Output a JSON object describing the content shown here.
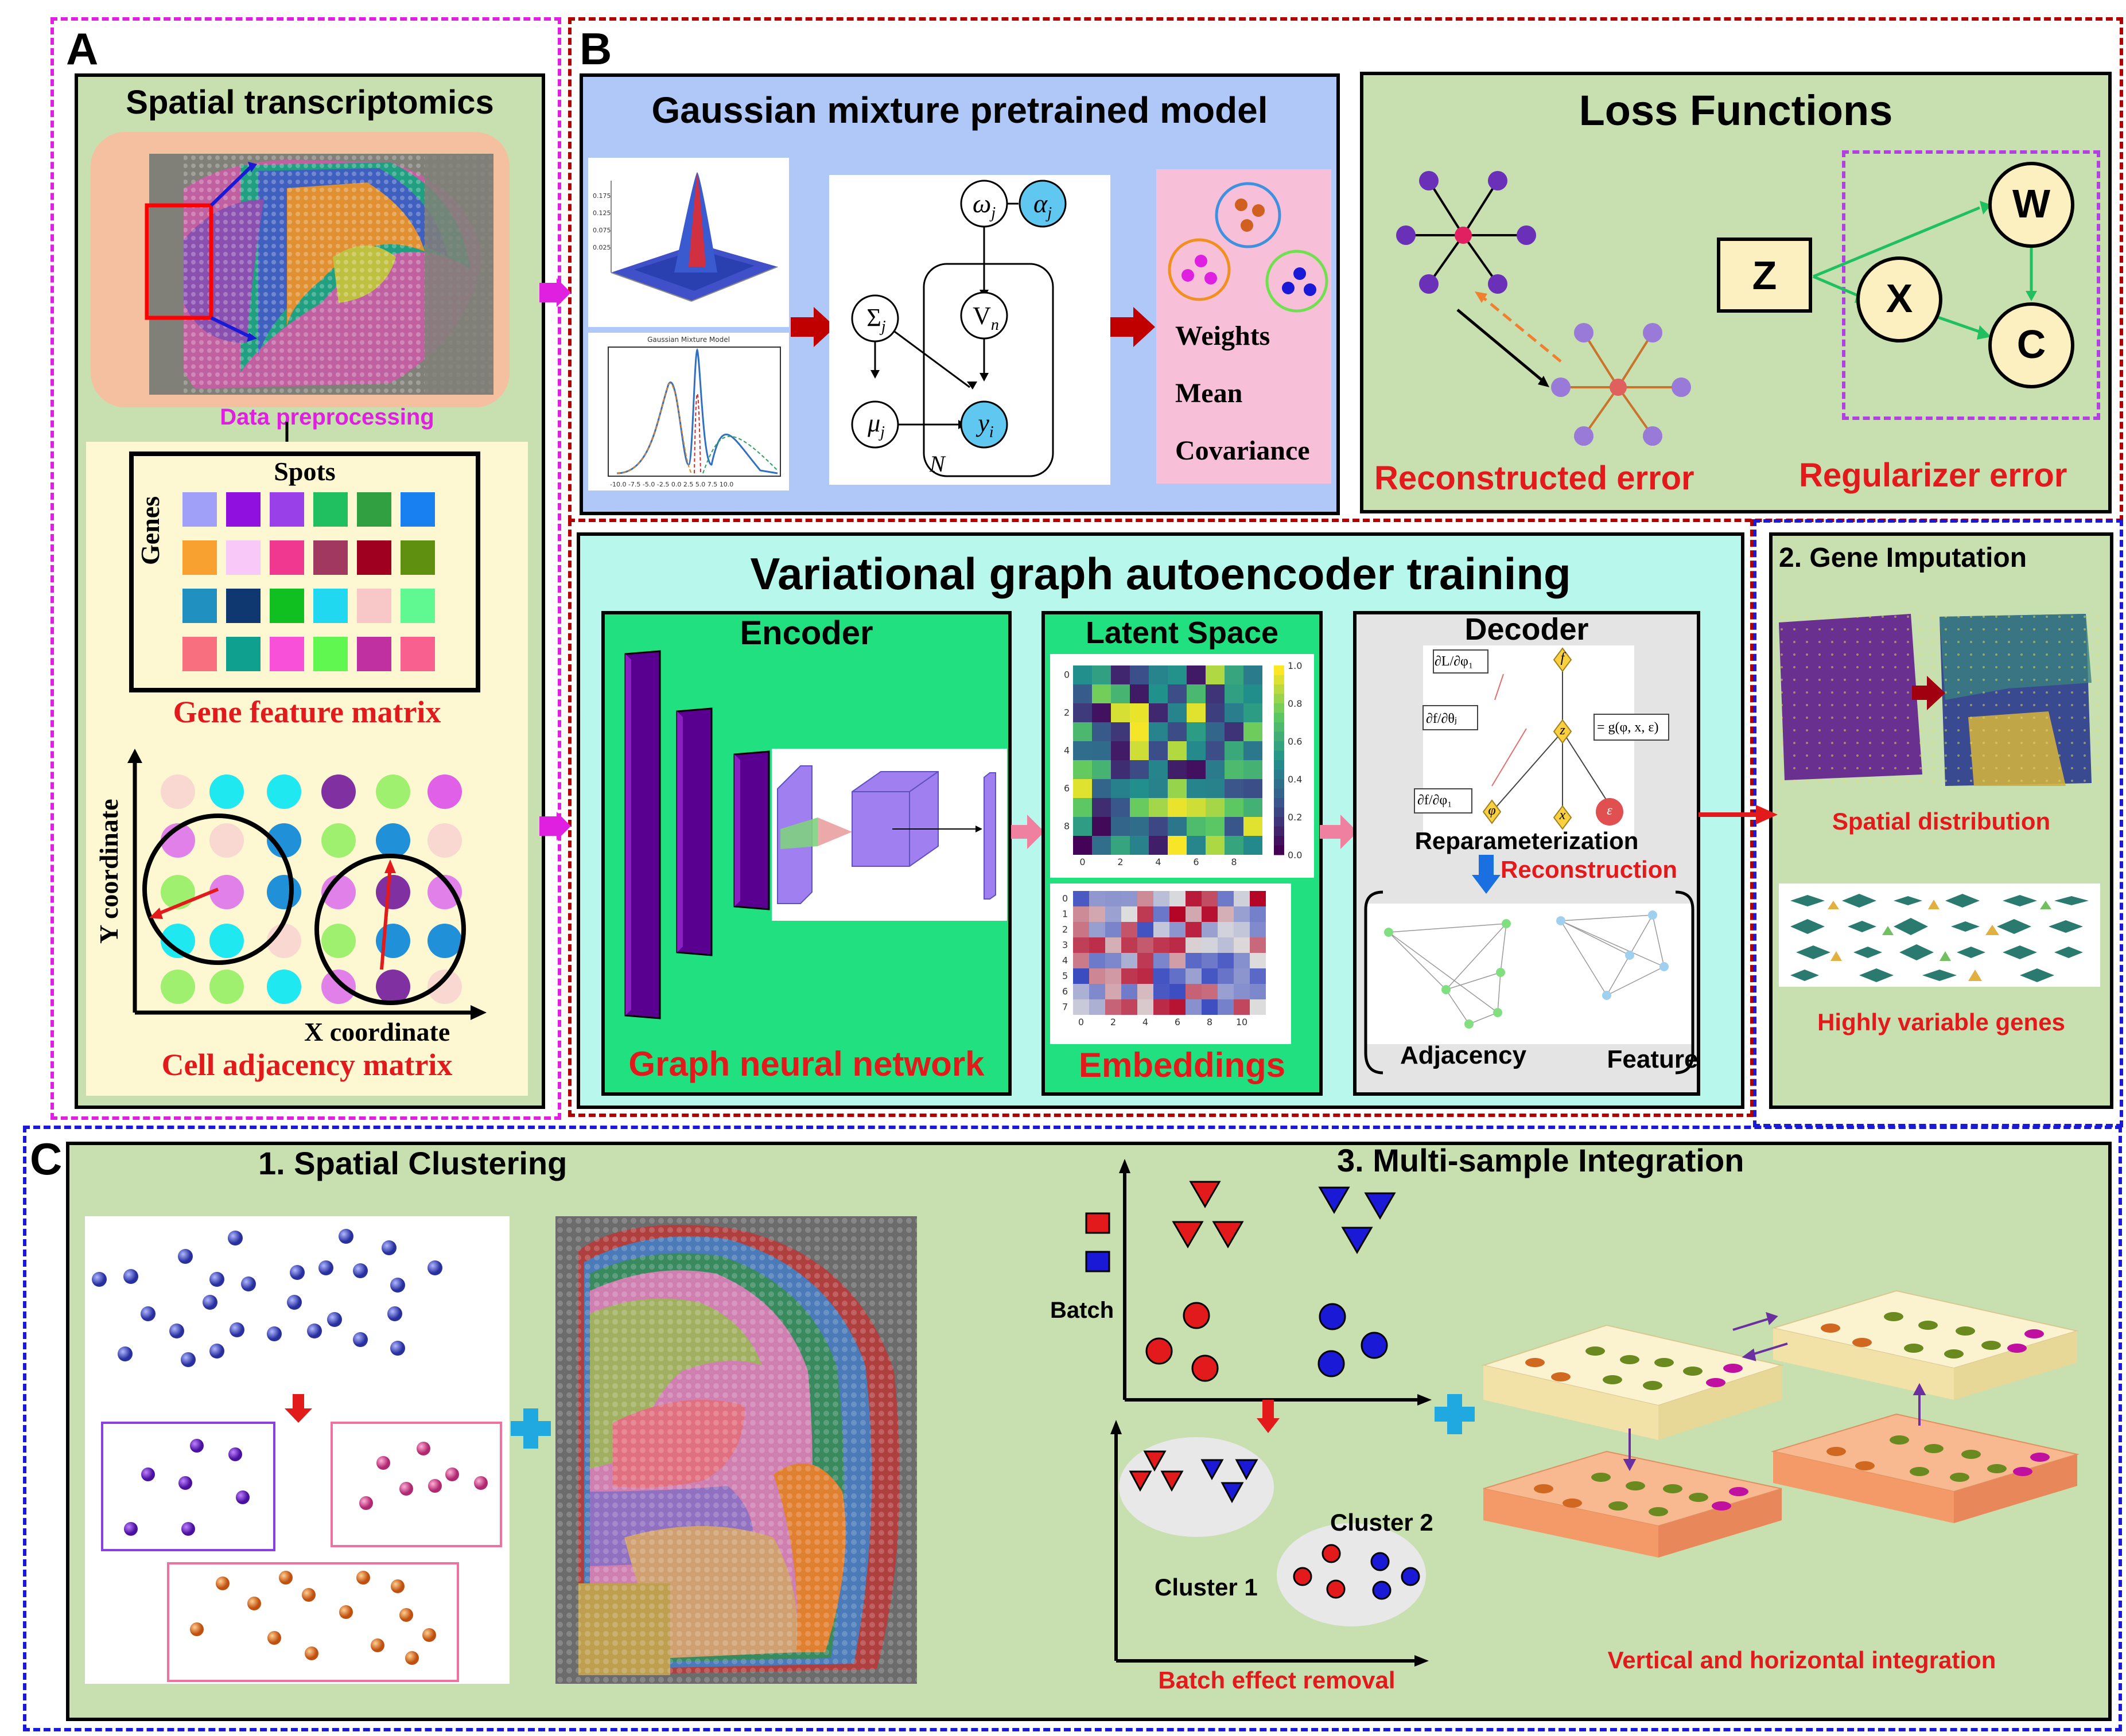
{
  "panels": {
    "a": "A",
    "b": "B",
    "c": "C"
  },
  "panel_a": {
    "title": "Spatial transcriptomics",
    "preprocessing": "Data preprocessing",
    "spots": "Spots",
    "genes": "Genes",
    "gene_feature_matrix": "Gene feature matrix",
    "y_coordinate": "Y coordinate",
    "x_coordinate": "X coordinate",
    "cell_adjacency": "Cell adjacency matrix"
  },
  "gmm": {
    "title": "Gaussian mixture pretrained model",
    "node_omega": "ω",
    "node_alpha": "α",
    "node_sigma": "Σ",
    "node_mu": "μ",
    "node_v": "V",
    "node_y": "y",
    "sub_j": "j",
    "sub_n": "n",
    "sub_i": "i",
    "plate": "N",
    "plot_top_label": "Gaussian Mixture Model",
    "outputs": [
      "Weights",
      "Mean",
      "Covariance"
    ]
  },
  "loss": {
    "title": "Loss Functions",
    "reconstructed": "Reconstructed error",
    "regularizer": "Regularizer error",
    "node_z": "Z",
    "node_x": "X",
    "node_w": "W",
    "node_c": "C"
  },
  "vgae": {
    "title": "Variational graph autoencoder training",
    "encoder": "Encoder",
    "gnn": "Graph neural network",
    "latent": "Latent Space",
    "embeddings": "Embeddings",
    "decoder": "Decoder",
    "reparam": "Reparameterization",
    "reconstruction": "Reconstruction",
    "adjacency": "Adjacency",
    "feature": "Feature",
    "formula_dl": "∂L/∂φ₁",
    "formula_df_theta": "∂f/∂θⱼ",
    "formula_df_phi": "∂f/∂φ₁",
    "formula_g": "= g(φ, x, ε)",
    "node_f": "f",
    "node_z": "z",
    "node_phi": "φ",
    "node_x": "x",
    "node_eps": "ε",
    "heatmap_ticks_x": [
      "0",
      "2",
      "4",
      "6",
      "8"
    ],
    "heatmap_ticks_y": [
      "0",
      "2",
      "4",
      "6",
      "8"
    ],
    "colorbar_ticks": [
      "1.0",
      "0.8",
      "0.6",
      "0.4",
      "0.2",
      "0.0"
    ],
    "embed_ticks_x": [
      "0",
      "2",
      "4",
      "6",
      "8",
      "10"
    ],
    "embed_ticks_y": [
      "0",
      "1",
      "2",
      "3",
      "4",
      "5",
      "6",
      "7"
    ]
  },
  "gene_imputation": {
    "title": "2. Gene Imputation",
    "spatial": "Spatial distribution",
    "hvg": "Highly variable genes"
  },
  "clustering": {
    "title": "1. Spatial Clustering"
  },
  "integration": {
    "title": "3. Multi-sample Integration",
    "batch": "Batch",
    "cluster1": "Cluster 1",
    "cluster2": "Cluster 2",
    "batch_removal": "Batch effect removal",
    "vh_integration": "Vertical and horizontal integration"
  },
  "colors": {
    "red": "#e31a1c",
    "magenta": "#e020e0",
    "blue": "#1a1ad6",
    "darkred": "#b00000",
    "panel_green": "#c8dfb0",
    "gmm_blue": "#b0c8f8",
    "vgae_cyan": "#b8f8ec",
    "encoder_green": "#20e080"
  }
}
